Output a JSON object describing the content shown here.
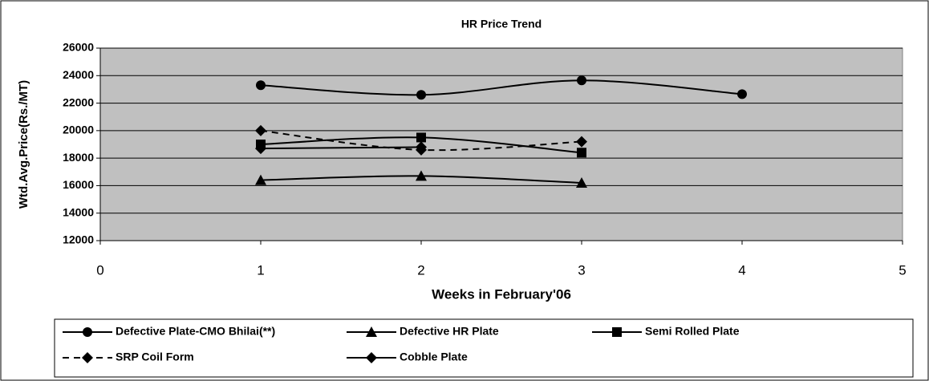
{
  "chart_data": {
    "type": "line",
    "title": "HR Price Trend",
    "x_label": "Weeks in February'06",
    "y_label": "Wtd.Avg.Price(Rs./MT)",
    "x": [
      1,
      2,
      3,
      4
    ],
    "series": [
      {
        "name": "Defective Plate-CMO Bhilai(**)",
        "color": "#000000",
        "marker": "circle",
        "dashed": false,
        "values": [
          23300,
          22600,
          23650,
          22650
        ]
      },
      {
        "name": "Defective HR Plate",
        "color": "#000000",
        "marker": "triangle",
        "dashed": false,
        "values": [
          16400,
          16700,
          16200,
          null
        ]
      },
      {
        "name": "Semi Rolled Plate",
        "color": "#000000",
        "marker": "square",
        "dashed": false,
        "values": [
          19000,
          19500,
          18400,
          null
        ]
      },
      {
        "name": "SRP Coil Form",
        "color": "#000000",
        "marker": "diamond",
        "dashed": true,
        "values": [
          20000,
          18600,
          19200,
          null
        ]
      },
      {
        "name": "Cobble Plate",
        "color": "#000000",
        "marker": "diamond",
        "dashed": false,
        "values": [
          18700,
          18800,
          null,
          null
        ]
      }
    ],
    "xlim": [
      0,
      5
    ],
    "xticks": [
      0,
      1,
      2,
      3,
      4,
      5
    ],
    "ylim": [
      12000,
      26000
    ],
    "yticks": [
      12000,
      14000,
      16000,
      18000,
      20000,
      22000,
      24000,
      26000
    ],
    "grid": true,
    "smooth": true,
    "plot_background": "#c0c0c0",
    "legend": "bottom"
  }
}
